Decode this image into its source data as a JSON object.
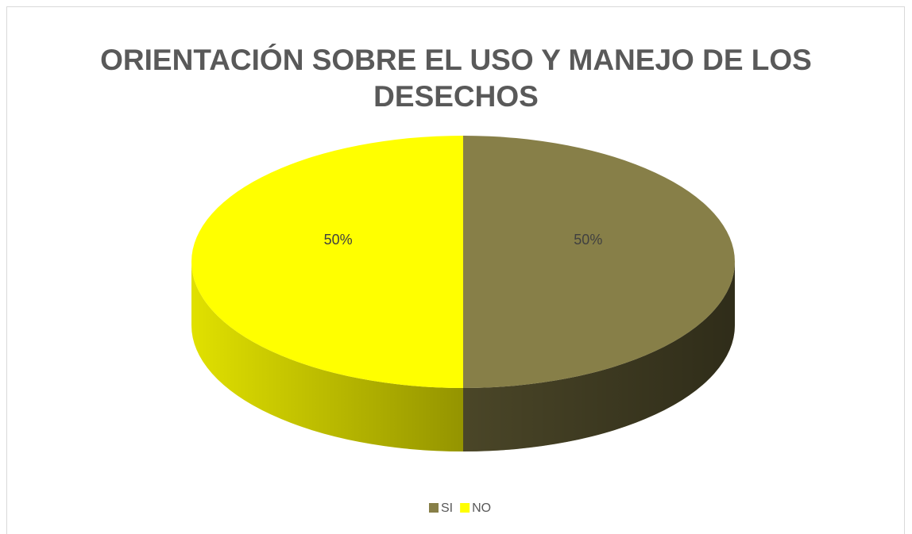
{
  "chart_data": {
    "type": "pie",
    "title": "ORIENTACIÓN SOBRE EL USO Y MANEJO DE LOS DESECHOS",
    "categories": [
      "SI",
      "NO"
    ],
    "values": [
      50,
      50
    ],
    "value_labels": [
      "50%",
      "50%"
    ],
    "colors": [
      "#877f48",
      "#ffff00"
    ],
    "legend": "bottom"
  }
}
